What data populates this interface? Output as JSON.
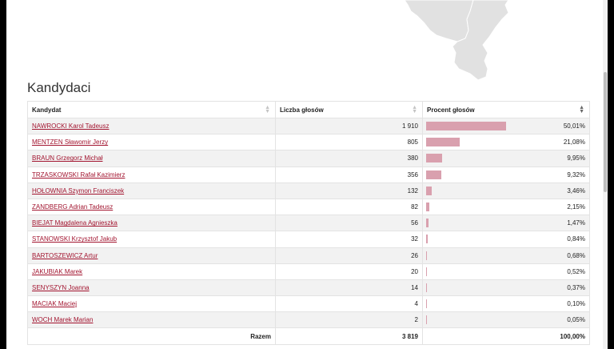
{
  "section": {
    "title": "Kandydaci"
  },
  "table": {
    "headers": {
      "candidate": "Kandydat",
      "votes": "Liczba głosów",
      "percent": "Procent głosów"
    },
    "rows": [
      {
        "name": "NAWROCKI Karol Tadeusz",
        "votes": "1 910",
        "percent": "50,01%",
        "share": 50.01
      },
      {
        "name": "MENTZEN Sławomir Jerzy",
        "votes": "805",
        "percent": "21,08%",
        "share": 21.08
      },
      {
        "name": "BRAUN Grzegorz Michał",
        "votes": "380",
        "percent": "9,95%",
        "share": 9.95
      },
      {
        "name": "TRZASKOWSKI Rafał Kazimierz",
        "votes": "356",
        "percent": "9,32%",
        "share": 9.32
      },
      {
        "name": "HOŁOWNIA Szymon Franciszek",
        "votes": "132",
        "percent": "3,46%",
        "share": 3.46
      },
      {
        "name": "ZANDBERG Adrian Tadeusz",
        "votes": "82",
        "percent": "2,15%",
        "share": 2.15
      },
      {
        "name": "BIEJAT Magdalena Agnieszka",
        "votes": "56",
        "percent": "1,47%",
        "share": 1.47
      },
      {
        "name": "STANOWSKI Krzysztof Jakub",
        "votes": "32",
        "percent": "0,84%",
        "share": 0.84
      },
      {
        "name": "BARTOSZEWICZ Artur",
        "votes": "26",
        "percent": "0,68%",
        "share": 0.68
      },
      {
        "name": "JAKUBIAK Marek",
        "votes": "20",
        "percent": "0,52%",
        "share": 0.52
      },
      {
        "name": "SENYSZYN Joanna",
        "votes": "14",
        "percent": "0,37%",
        "share": 0.37
      },
      {
        "name": "MACIAK Maciej",
        "votes": "4",
        "percent": "0,10%",
        "share": 0.1
      },
      {
        "name": "WOCH Marek Marian",
        "votes": "2",
        "percent": "0,05%",
        "share": 0.05
      }
    ],
    "footer": {
      "label": "Razem",
      "votes": "3 819",
      "percent": "100,00%"
    }
  },
  "colors": {
    "bar": "#d9a0ae",
    "link": "#a2142f",
    "stripe": "#f2f2f2"
  },
  "icons": {
    "sort": "sort-icon",
    "sort_active": "sort-desc-icon"
  }
}
